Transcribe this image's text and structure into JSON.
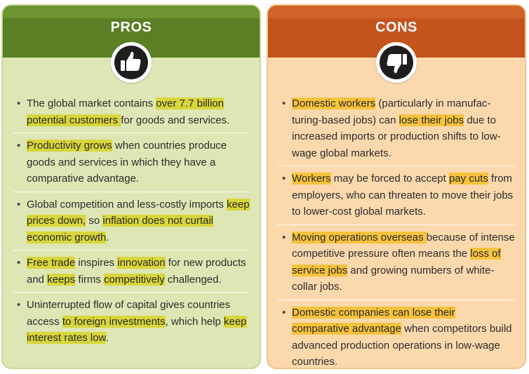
{
  "pros": {
    "title": "PROS",
    "icon": "thumbs-up-icon",
    "items": [
      {
        "segments": [
          {
            "t": "The global market contains ",
            "hl": false
          },
          {
            "t": "over 7.7 billion potential customers ",
            "hl": true
          },
          {
            "t": "for goods and services.",
            "hl": false
          }
        ]
      },
      {
        "segments": [
          {
            "t": "Productivity grows",
            "hl": true
          },
          {
            "t": " when countries produce goods and services in which they have a comparative advantage.",
            "hl": false
          }
        ]
      },
      {
        "segments": [
          {
            "t": "Global competition and less-costly imports ",
            "hl": false
          },
          {
            "t": "keep prices down,",
            "hl": true
          },
          {
            "t": " so ",
            "hl": false
          },
          {
            "t": "inflation does not curtail economic growth",
            "hl": true
          },
          {
            "t": ".",
            "hl": false
          }
        ]
      },
      {
        "segments": [
          {
            "t": "Free trade",
            "hl": true
          },
          {
            "t": " inspires ",
            "hl": false
          },
          {
            "t": "innovation",
            "hl": true
          },
          {
            "t": " for new products and ",
            "hl": false
          },
          {
            "t": "keeps",
            "hl": true
          },
          {
            "t": " firms ",
            "hl": false
          },
          {
            "t": "competitively",
            "hl": true
          },
          {
            "t": " challenged.",
            "hl": false
          }
        ]
      },
      {
        "segments": [
          {
            "t": "Uninterrupted flow of capital gives countries access ",
            "hl": false
          },
          {
            "t": "to foreign investments",
            "hl": true
          },
          {
            "t": ", which help ",
            "hl": false
          },
          {
            "t": "keep interest rates low",
            "hl": true
          },
          {
            "t": ".",
            "hl": false
          }
        ]
      }
    ]
  },
  "cons": {
    "title": "CONS",
    "icon": "thumbs-down-icon",
    "items": [
      {
        "segments": [
          {
            "t": "Domestic workers",
            "hl": true
          },
          {
            "t": " (particularly in manufac-turing-based jobs) can ",
            "hl": false
          },
          {
            "t": "lose their jobs",
            "hl": true
          },
          {
            "t": " due to increased imports or production shifts to low-wage global markets.",
            "hl": false
          }
        ]
      },
      {
        "segments": [
          {
            "t": "Workers",
            "hl": true
          },
          {
            "t": " may be forced to accept ",
            "hl": false
          },
          {
            "t": "pay cuts",
            "hl": true
          },
          {
            "t": " from employers, who can threaten to move their jobs to lower-cost global markets.",
            "hl": false
          }
        ]
      },
      {
        "segments": [
          {
            "t": "Moving operations overseas ",
            "hl": true
          },
          {
            "t": "because of intense competitive pressure often means the ",
            "hl": false
          },
          {
            "t": "loss of service jobs",
            "hl": true
          },
          {
            "t": " and growing numbers of white-collar jobs.",
            "hl": false
          }
        ]
      },
      {
        "segments": [
          {
            "t": "Domestic companies can lose their comparative advantage",
            "hl": true
          },
          {
            "t": " when competitors build advanced production operations in low-wage countries.",
            "hl": false
          }
        ]
      }
    ]
  },
  "colors": {
    "pros_header": "#5a7f24",
    "pros_body": "#dde6b4",
    "pros_highlight": "#d8d63a",
    "cons_header": "#c4541c",
    "cons_body": "#fbd9ad",
    "cons_highlight": "#f7c23c"
  }
}
